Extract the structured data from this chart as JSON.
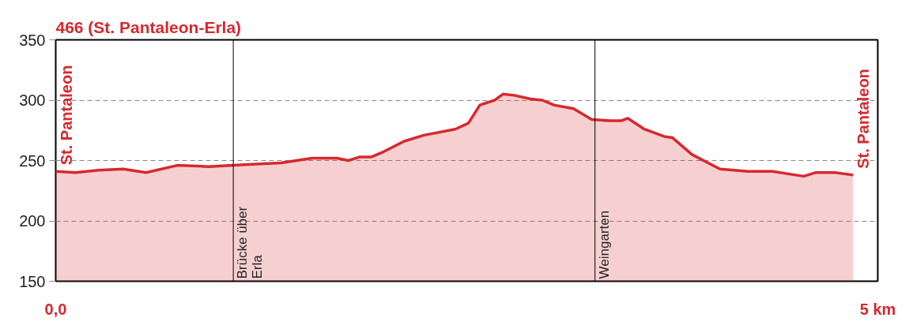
{
  "chart_data": {
    "type": "area",
    "title": "466 (St. Pantaleon-Erla)",
    "x": [
      0,
      0.12,
      0.26,
      0.41,
      0.55,
      0.74,
      0.93,
      1.08,
      1.22,
      1.37,
      1.56,
      1.71,
      1.78,
      1.85,
      1.92,
      1.99,
      2.12,
      2.24,
      2.43,
      2.51,
      2.58,
      2.67,
      2.72,
      2.79,
      2.89,
      2.96,
      3.03,
      3.15,
      3.26,
      3.37,
      3.44,
      3.48,
      3.58,
      3.7,
      3.75,
      3.87,
      4.04,
      4.21,
      4.36,
      4.5,
      4.55,
      4.62,
      4.74,
      4.85
    ],
    "series": [
      {
        "color": "#d7282f",
        "values": [
          241,
          240,
          242,
          243,
          240,
          246,
          245,
          246,
          247,
          248,
          252,
          252,
          250,
          253,
          253,
          257,
          266,
          271,
          276,
          281,
          296,
          300,
          305,
          304,
          301,
          300,
          296,
          293,
          284,
          283,
          283,
          285,
          276,
          270,
          269,
          255,
          243,
          241,
          241,
          238,
          237,
          240,
          240,
          238
        ]
      }
    ],
    "xlim": [
      0,
      5
    ],
    "xticks": [
      {
        "value": 0,
        "label": "0,0"
      },
      {
        "value": 5,
        "label": "5 km"
      }
    ],
    "ylim": [
      150,
      350
    ],
    "yticks": [
      150,
      200,
      250,
      300,
      350
    ],
    "grid": "y",
    "ref_lines": [
      {
        "axis": "x",
        "value": 1.08,
        "label": "Brücke über Erla",
        "color": "#000000"
      },
      {
        "axis": "x",
        "value": 3.28,
        "label": "Weingarten",
        "color": "#000000"
      }
    ],
    "annotations": [
      {
        "text": "St. Pantaleon",
        "x": 0,
        "y": 241
      },
      {
        "text": "St. Pantaleon",
        "x": 4.85,
        "y": 238
      }
    ]
  }
}
